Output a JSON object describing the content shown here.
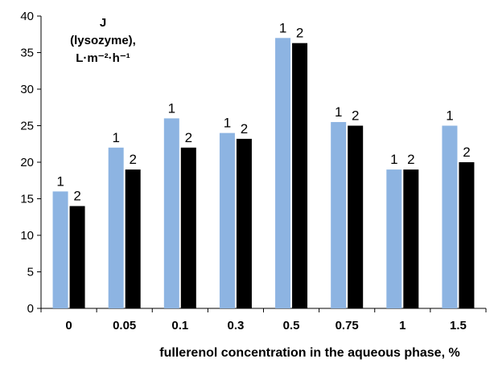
{
  "chart_data": {
    "type": "bar",
    "categories": [
      "0",
      "0.05",
      "0.1",
      "0.3",
      "0.5",
      "0.75",
      "1",
      "1.5"
    ],
    "series": [
      {
        "name": "1",
        "values": [
          16,
          22,
          26,
          24,
          37,
          25.5,
          19,
          25
        ],
        "color": "#8db4e2"
      },
      {
        "name": "2",
        "values": [
          14,
          19,
          22,
          23.2,
          36.3,
          25,
          19,
          20
        ],
        "color": "#000000"
      }
    ],
    "ylim": [
      0,
      40
    ],
    "yticks": [
      0,
      5,
      10,
      15,
      20,
      25,
      30,
      35,
      40
    ],
    "ylabel_lines": [
      "J",
      "(lysozyme),",
      "L·m⁻²·h⁻¹"
    ],
    "xlabel": "fullerenol concentration in the aqueous phase, %",
    "grid": false,
    "legend": "none"
  }
}
